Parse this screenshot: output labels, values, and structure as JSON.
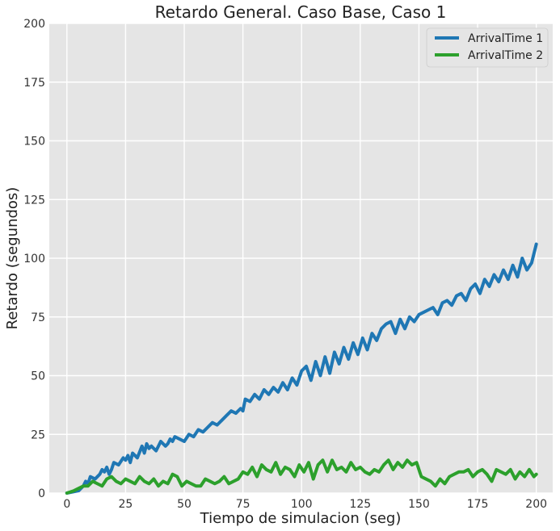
{
  "chart_data": {
    "type": "line",
    "title": "Retardo General. Caso Base, Caso 1",
    "xlabel": "Tiempo de simulacion (seg)",
    "ylabel": "Retardo (segundos)",
    "xlim": [
      -7.5,
      207
    ],
    "ylim": [
      0,
      200
    ],
    "x_ticks": [
      0,
      25,
      50,
      75,
      100,
      125,
      150,
      175,
      200
    ],
    "y_ticks": [
      0,
      25,
      50,
      75,
      100,
      125,
      150,
      175,
      200
    ],
    "x_tick_labels": [
      "0",
      "25",
      "50",
      "75",
      "100",
      "125",
      "150",
      "175",
      "200"
    ],
    "y_tick_labels": [
      "0",
      "25",
      "50",
      "75",
      "100",
      "125",
      "150",
      "175",
      "200"
    ],
    "grid": true,
    "background": "#e5e5e5",
    "legend_position": "top-right",
    "series": [
      {
        "name": "ArrivalTime 1",
        "color": "#1f77b4",
        "x": [
          0,
          5,
          7,
          8,
          9,
          10,
          12,
          14,
          15,
          16,
          17,
          18,
          19,
          20,
          22,
          24,
          25,
          26,
          27,
          28,
          30,
          32,
          33,
          34,
          35,
          36,
          38,
          40,
          42,
          43,
          44,
          45,
          46,
          48,
          50,
          52,
          54,
          56,
          58,
          60,
          62,
          64,
          66,
          68,
          70,
          72,
          74,
          75,
          76,
          78,
          80,
          82,
          84,
          86,
          88,
          90,
          92,
          94,
          96,
          98,
          100,
          102,
          104,
          106,
          108,
          110,
          112,
          114,
          116,
          118,
          120,
          122,
          124,
          126,
          128,
          130,
          132,
          134,
          136,
          138,
          140,
          142,
          144,
          146,
          148,
          150,
          152,
          154,
          156,
          158,
          160,
          162,
          164,
          166,
          168,
          170,
          172,
          174,
          176,
          178,
          180,
          182,
          184,
          186,
          188,
          190,
          192,
          194,
          196,
          198,
          200
        ],
        "values": [
          0,
          1,
          3,
          5,
          4,
          7,
          6,
          8,
          10,
          9,
          11,
          8,
          10,
          13,
          12,
          15,
          14,
          16,
          13,
          17,
          15,
          20,
          17,
          21,
          19,
          20,
          18,
          22,
          20,
          21,
          23,
          22,
          24,
          23,
          22,
          25,
          24,
          27,
          26,
          28,
          30,
          29,
          31,
          33,
          35,
          34,
          36,
          35,
          40,
          39,
          42,
          40,
          44,
          42,
          45,
          43,
          47,
          44,
          49,
          46,
          52,
          54,
          48,
          56,
          50,
          58,
          51,
          60,
          55,
          62,
          57,
          64,
          59,
          66,
          61,
          68,
          65,
          70,
          72,
          73,
          68,
          74,
          70,
          75,
          73,
          76,
          77,
          78,
          79,
          76,
          81,
          82,
          80,
          84,
          85,
          82,
          87,
          89,
          85,
          91,
          88,
          93,
          90,
          95,
          91,
          97,
          92,
          100,
          95,
          98,
          106
        ]
      },
      {
        "name": "ArrivalTime 2",
        "color": "#2ca02c",
        "x": [
          0,
          3,
          5,
          7,
          9,
          11,
          13,
          15,
          17,
          19,
          21,
          23,
          25,
          27,
          29,
          31,
          33,
          35,
          37,
          39,
          41,
          43,
          45,
          47,
          49,
          51,
          53,
          55,
          57,
          59,
          61,
          63,
          65,
          67,
          69,
          71,
          73,
          75,
          77,
          79,
          81,
          83,
          85,
          87,
          89,
          91,
          93,
          95,
          97,
          99,
          101,
          103,
          105,
          107,
          109,
          111,
          113,
          115,
          117,
          119,
          121,
          123,
          125,
          127,
          129,
          131,
          133,
          135,
          137,
          139,
          141,
          143,
          145,
          147,
          149,
          151,
          153,
          155,
          157,
          159,
          161,
          163,
          165,
          167,
          169,
          171,
          173,
          175,
          177,
          179,
          181,
          183,
          185,
          187,
          189,
          191,
          193,
          195,
          197,
          199,
          200
        ],
        "values": [
          0,
          1,
          2,
          3,
          3,
          5,
          4,
          3,
          6,
          7,
          5,
          4,
          6,
          5,
          4,
          7,
          5,
          4,
          6,
          3,
          5,
          4,
          8,
          7,
          3,
          5,
          4,
          3,
          3,
          6,
          5,
          4,
          5,
          7,
          4,
          5,
          6,
          9,
          8,
          11,
          7,
          12,
          10,
          9,
          13,
          8,
          11,
          10,
          7,
          12,
          9,
          13,
          6,
          12,
          14,
          9,
          14,
          10,
          11,
          9,
          13,
          10,
          11,
          9,
          8,
          10,
          9,
          12,
          14,
          10,
          13,
          11,
          14,
          12,
          13,
          7,
          6,
          5,
          3,
          6,
          4,
          7,
          8,
          9,
          9,
          10,
          7,
          9,
          10,
          8,
          5,
          10,
          9,
          8,
          10,
          6,
          9,
          7,
          10,
          7,
          8
        ]
      }
    ]
  }
}
